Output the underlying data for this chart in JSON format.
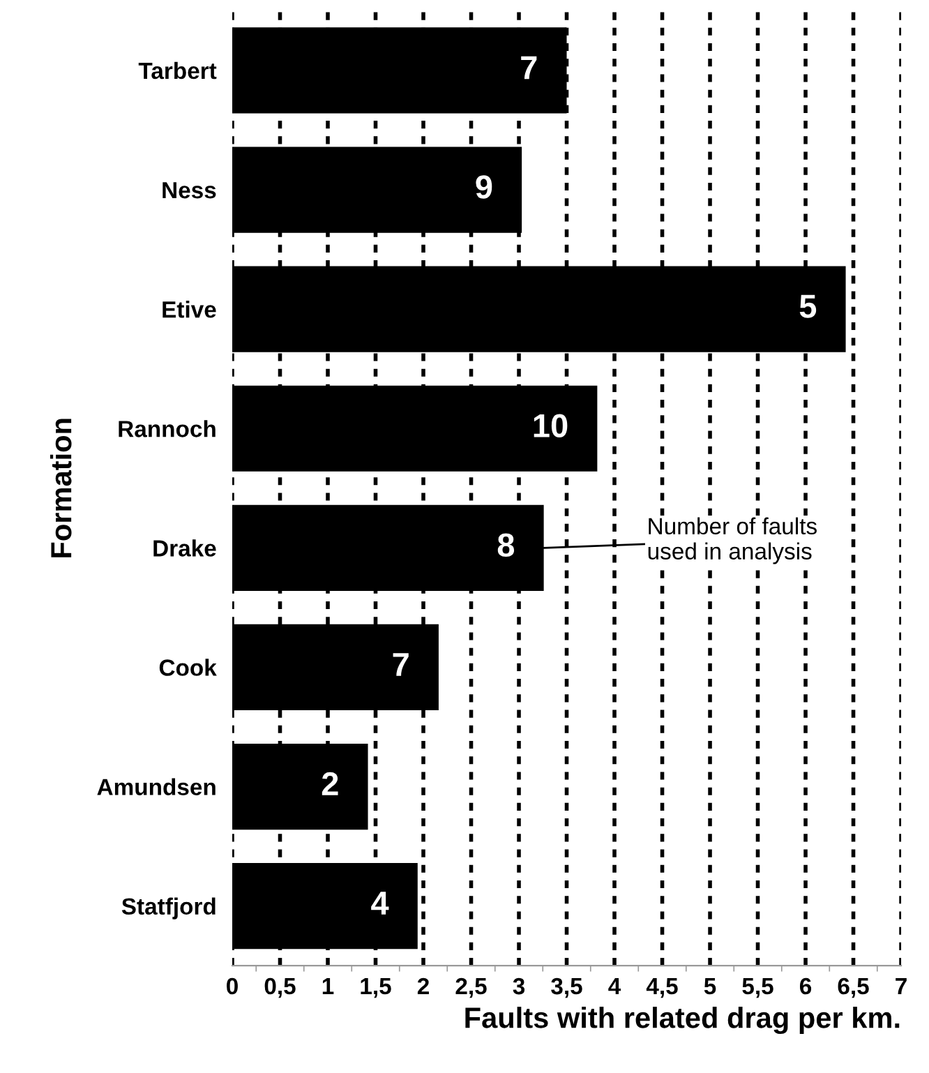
{
  "chart_data": {
    "type": "bar",
    "orientation": "horizontal",
    "xlabel": "Faults with related drag per km.",
    "ylabel": "Formation",
    "categories": [
      "Tarbert",
      "Ness",
      "Etive",
      "Rannoch",
      "Drake",
      "Cook",
      "Amundsen",
      "Statfjord"
    ],
    "values": [
      3.5,
      3.03,
      6.42,
      3.82,
      3.26,
      2.16,
      1.42,
      1.94
    ],
    "color": "#000000",
    "xlim": [
      0,
      7
    ],
    "xticks": [
      0,
      {
        "value": 0.5,
        "label": "0,5"
      },
      1,
      {
        "value": 1.5,
        "label": "1,5"
      },
      2,
      {
        "value": 2.5,
        "label": "2,5"
      },
      3,
      {
        "value": 3.5,
        "label": "3,5"
      },
      4,
      {
        "value": 4.5,
        "label": "4,5"
      },
      5,
      {
        "value": 5.5,
        "label": "5,5"
      },
      6,
      {
        "value": 6.5,
        "label": "6,5"
      },
      7
    ],
    "grid": "x",
    "annotations": [
      {
        "text": "7",
        "x": 3.5,
        "y": "Tarbert"
      },
      {
        "text": "9",
        "x": 3.03,
        "y": "Ness"
      },
      {
        "text": "5",
        "x": 6.42,
        "y": "Etive"
      },
      {
        "text": "10",
        "x": 3.82,
        "y": "Rannoch"
      },
      {
        "text": "8",
        "x": 3.26,
        "y": "Drake"
      },
      "Number of faults\nused in analysis",
      {
        "text": "7",
        "x": 2.16,
        "y": "Cook"
      },
      {
        "text": "2",
        "x": 1.42,
        "y": "Amundsen"
      },
      {
        "text": "4",
        "x": 1.94,
        "y": "Statfjord"
      }
    ]
  }
}
